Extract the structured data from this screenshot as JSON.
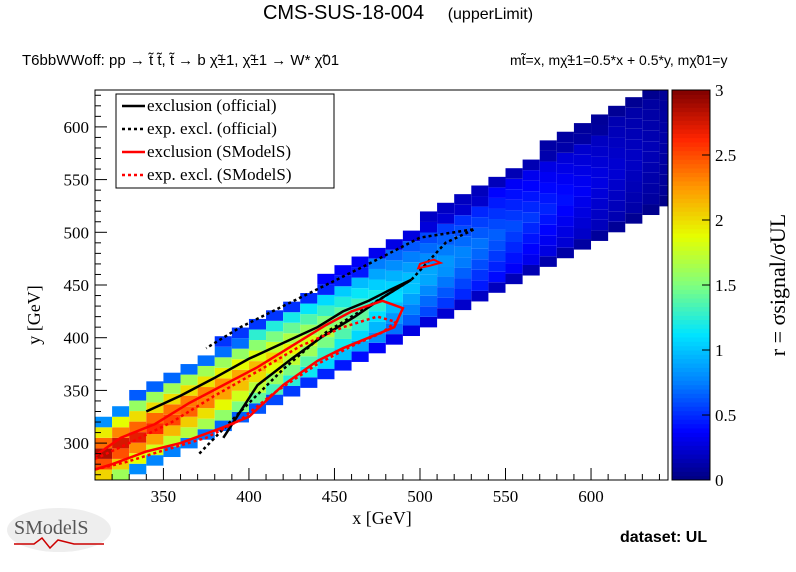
{
  "header": {
    "title": "CMS-SUS-18-004",
    "subtitle": "(upperLimit)",
    "process": "T6bbWWoff: pp  → t̃ t̃, t̃  → b χ̃±1, χ̃±1 → W* χ̃01",
    "mass_relation": "mt̃=x, mχ̃±1=0.5*x + 0.5*y, mχ̃01=y"
  },
  "footer": {
    "dataset": "dataset: UL",
    "logo_text": "SModelS"
  },
  "chart_data": {
    "type": "heatmap",
    "xlabel": "x [GeV]",
    "ylabel": "y [GeV]",
    "zlabel": "r = σsignal/σUL",
    "xlim": [
      310,
      645
    ],
    "ylim": [
      265,
      635
    ],
    "zlim": [
      0,
      3
    ],
    "xticks": [
      350,
      400,
      450,
      500,
      550,
      600
    ],
    "yticks": [
      300,
      350,
      400,
      450,
      500,
      550,
      600
    ],
    "zticks": [
      0,
      0.5,
      1,
      1.5,
      2,
      2.5,
      3
    ],
    "colorscale": [
      "#00007f",
      "#0000ff",
      "#007fff",
      "#00e5ff",
      "#7fff7f",
      "#e5ff00",
      "#ff9900",
      "#ff2400",
      "#7f0000"
    ],
    "grid": false,
    "legend": {
      "position": "top-left",
      "entries": [
        {
          "label": "exclusion (official)",
          "color": "#000000",
          "dashed": false
        },
        {
          "label": "exp. excl. (official)",
          "color": "#000000",
          "dashed": true
        },
        {
          "label": "exclusion (SModelS)",
          "color": "#ff0000",
          "dashed": false
        },
        {
          "label": "exp. excl. (SModelS)",
          "color": "#ff0000",
          "dashed": true
        }
      ]
    },
    "grid_spec": {
      "dx": 10,
      "dy": 10,
      "ymin_offset": 30,
      "ymax_offset": 120
    },
    "ridge": [
      {
        "x": 310,
        "r": 2.9
      },
      {
        "x": 340,
        "r": 2.7
      },
      {
        "x": 370,
        "r": 2.5
      },
      {
        "x": 400,
        "r": 2.2
      },
      {
        "x": 420,
        "r": 1.95
      },
      {
        "x": 440,
        "r": 1.7
      },
      {
        "x": 460,
        "r": 1.45
      },
      {
        "x": 480,
        "r": 1.15
      },
      {
        "x": 500,
        "r": 0.95
      },
      {
        "x": 520,
        "r": 0.8
      },
      {
        "x": 550,
        "r": 0.6
      },
      {
        "x": 600,
        "r": 0.3
      },
      {
        "x": 645,
        "r": 0.1
      }
    ],
    "series": [
      {
        "name": "exclusion (official)",
        "style": "solid",
        "color": "#000000",
        "points": [
          [
            340,
            330
          ],
          [
            360,
            345
          ],
          [
            380,
            362
          ],
          [
            400,
            380
          ],
          [
            420,
            395
          ],
          [
            440,
            410
          ],
          [
            455,
            425
          ],
          [
            470,
            435
          ],
          [
            482,
            445
          ],
          [
            495,
            455
          ],
          [
            480,
            440
          ],
          [
            462,
            420
          ],
          [
            442,
            400
          ],
          [
            425,
            380
          ],
          [
            405,
            355
          ],
          [
            385,
            305
          ]
        ]
      },
      {
        "name": "exp. excl. (official)",
        "style": "dashed",
        "color": "#000000",
        "points": [
          [
            371,
            290
          ],
          [
            395,
            330
          ],
          [
            420,
            370
          ],
          [
            445,
            405
          ],
          [
            470,
            430
          ],
          [
            495,
            455
          ],
          [
            515,
            490
          ],
          [
            532,
            503
          ],
          [
            500,
            495
          ],
          [
            470,
            470
          ],
          [
            445,
            450
          ],
          [
            420,
            430
          ],
          [
            395,
            410
          ],
          [
            375,
            390
          ]
        ]
      },
      {
        "name": "exclusion (SModelS)",
        "style": "solid",
        "color": "#ff0000",
        "points": [
          [
            310,
            288
          ],
          [
            325,
            305
          ],
          [
            345,
            318
          ],
          [
            365,
            338
          ],
          [
            385,
            355
          ],
          [
            405,
            372
          ],
          [
            425,
            392
          ],
          [
            445,
            412
          ],
          [
            460,
            425
          ],
          [
            478,
            435
          ],
          [
            490,
            428
          ],
          [
            485,
            410
          ],
          [
            470,
            400
          ],
          [
            455,
            390
          ],
          [
            440,
            378
          ],
          [
            420,
            355
          ],
          [
            400,
            325
          ],
          [
            385,
            315
          ],
          [
            360,
            300
          ],
          [
            340,
            292
          ],
          [
            320,
            280
          ],
          [
            310,
            275
          ]
        ]
      },
      {
        "name": "exp. excl. (SModelS)",
        "style": "dashed",
        "color": "#ff0000",
        "points": [
          [
            310,
            285
          ],
          [
            330,
            300
          ],
          [
            355,
            320
          ],
          [
            380,
            345
          ],
          [
            405,
            368
          ],
          [
            430,
            392
          ],
          [
            455,
            410
          ],
          [
            475,
            420
          ],
          [
            486,
            415
          ],
          [
            478,
            405
          ],
          [
            460,
            392
          ],
          [
            440,
            375
          ],
          [
            415,
            348
          ],
          [
            395,
            322
          ],
          [
            375,
            305
          ],
          [
            350,
            293
          ],
          [
            328,
            282
          ],
          [
            310,
            275
          ]
        ]
      }
    ],
    "red_blob": {
      "points": [
        [
          500,
          470
        ],
        [
          508,
          474
        ],
        [
          512,
          471
        ],
        [
          505,
          468
        ],
        [
          499,
          466
        ]
      ]
    }
  }
}
